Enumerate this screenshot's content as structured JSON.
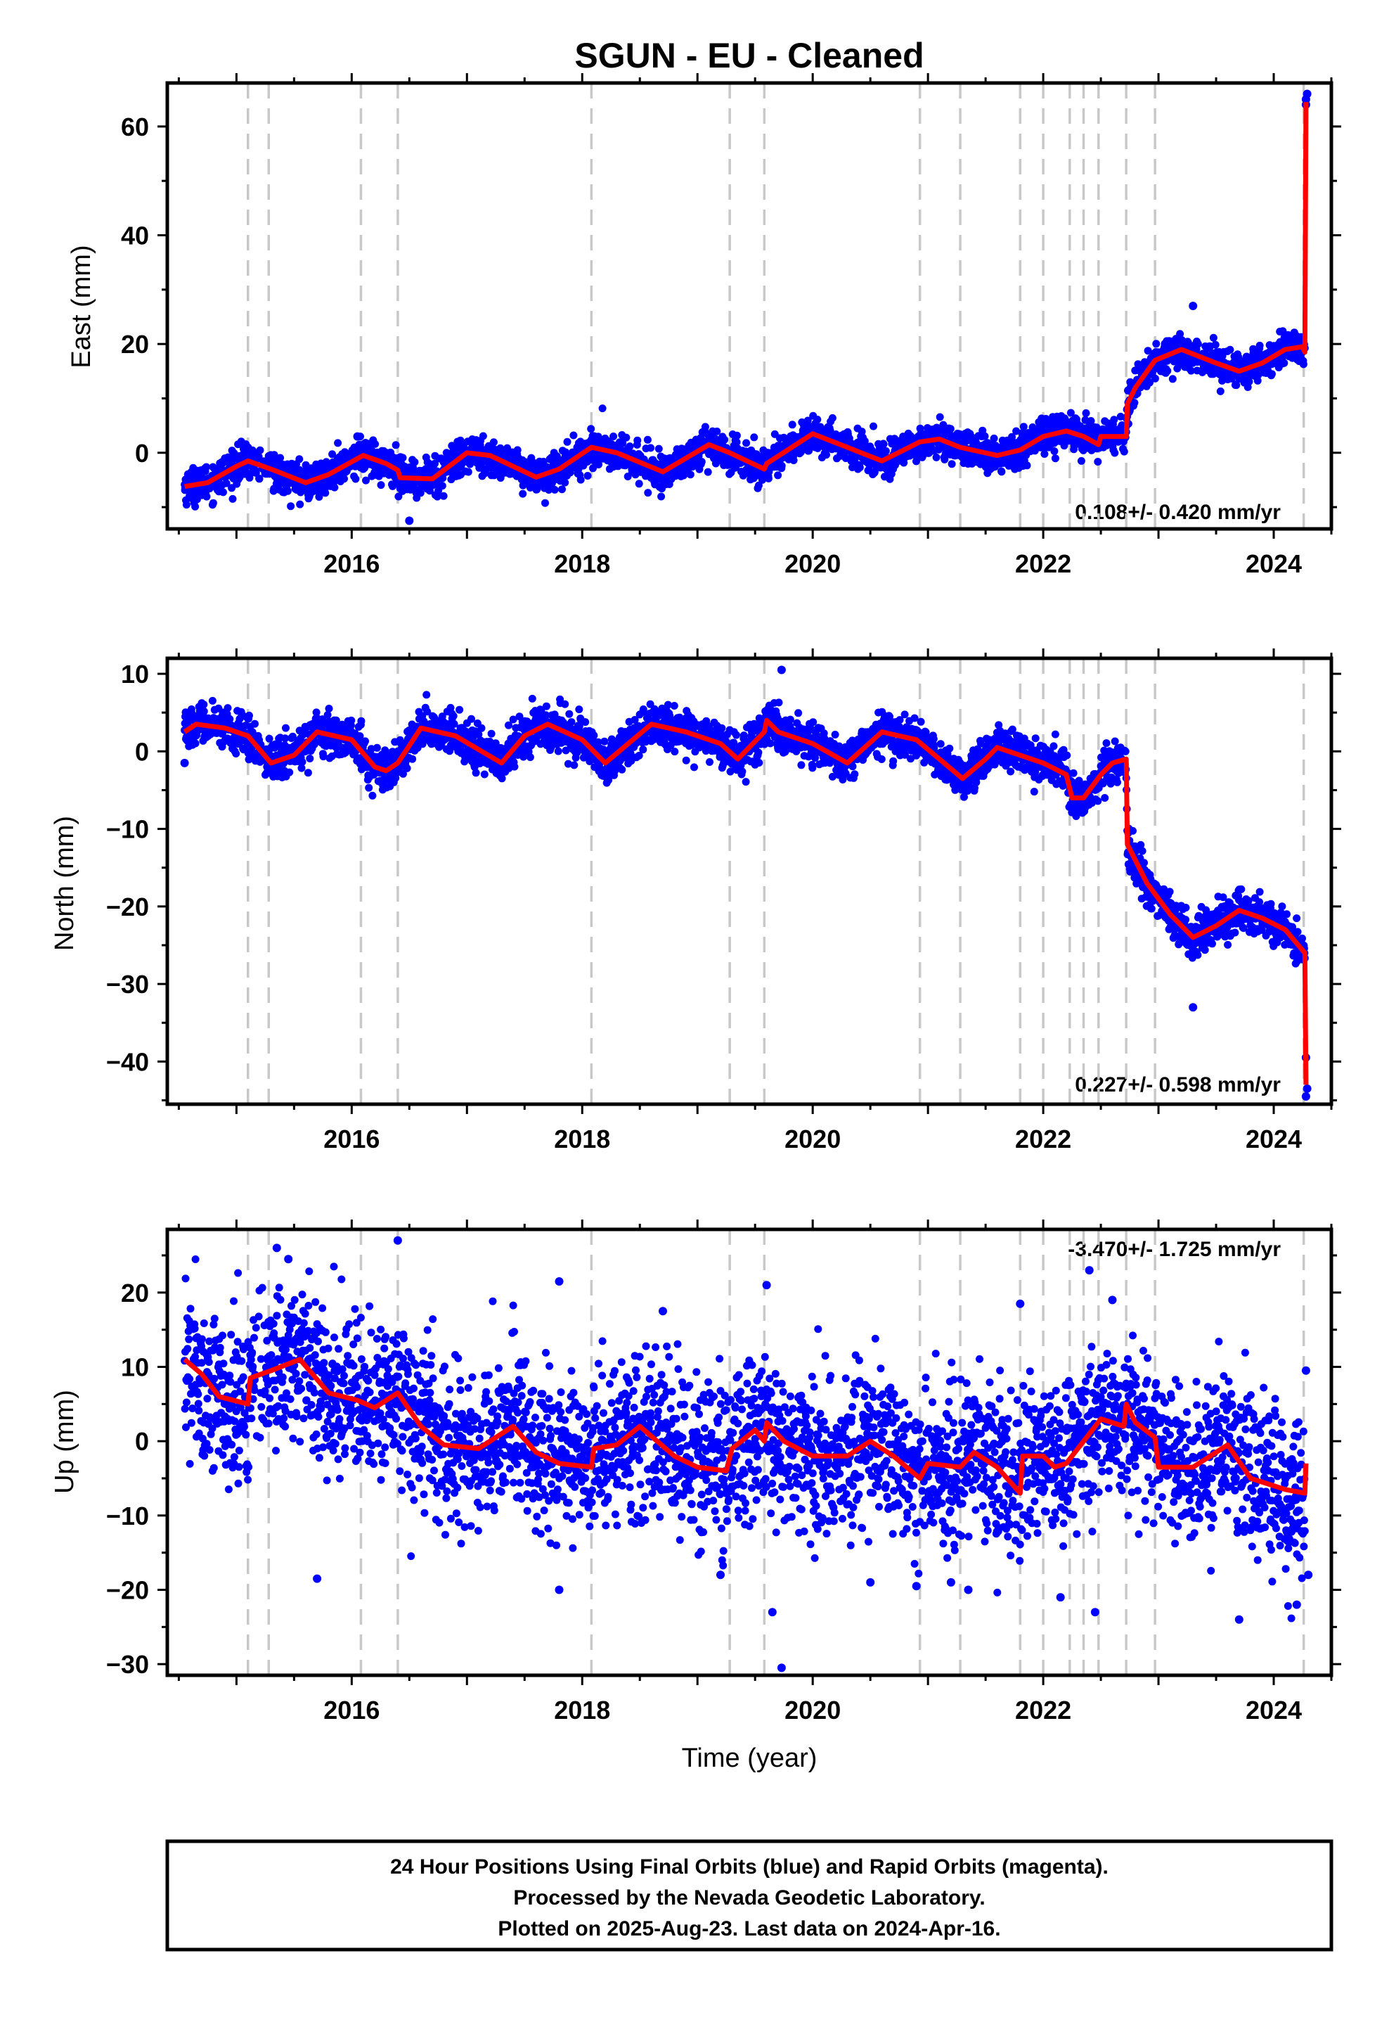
{
  "title": "SGUN  - EU - Cleaned",
  "colors": {
    "points": "#0000ff",
    "model": "#ff0000",
    "events": "#c8c8c8",
    "frame": "#000000"
  },
  "event_lines": [
    2015.1,
    2015.28,
    2016.08,
    2016.4,
    2018.08,
    2019.28,
    2019.58,
    2020.93,
    2021.28,
    2021.8,
    2022.0,
    2022.23,
    2022.35,
    2022.48,
    2022.72,
    2022.97,
    2024.26
  ],
  "chart_data": [
    {
      "type": "scatter",
      "component": "East",
      "ylabel": "East (mm)",
      "xlim": [
        2014.4,
        2024.5
      ],
      "ylim": [
        -14,
        68
      ],
      "xticks": [
        2016,
        2018,
        2020,
        2022,
        2024
      ],
      "yticks": [
        0,
        20,
        40,
        60
      ],
      "rate_text": "0.108+/- 0.420 mm/yr",
      "rate_position": "bottom-right",
      "noise": 1.6,
      "model": [
        [
          2014.55,
          -6.2
        ],
        [
          2014.75,
          -5.5
        ],
        [
          2015.0,
          -2.5
        ],
        [
          2015.1,
          -1.5
        ],
        [
          2015.3,
          -3
        ],
        [
          2015.6,
          -5.5
        ],
        [
          2015.8,
          -4
        ],
        [
          2016.1,
          -0.5
        ],
        [
          2016.3,
          -2
        ],
        [
          2016.4,
          -3.2
        ],
        [
          2016.42,
          -4.6
        ],
        [
          2016.7,
          -4.8
        ],
        [
          2017.0,
          0
        ],
        [
          2017.2,
          -0.5
        ],
        [
          2017.6,
          -4.5
        ],
        [
          2017.8,
          -3
        ],
        [
          2018.08,
          1
        ],
        [
          2018.3,
          0
        ],
        [
          2018.7,
          -3.5
        ],
        [
          2019.1,
          1.5
        ],
        [
          2019.28,
          0
        ],
        [
          2019.58,
          -3
        ],
        [
          2019.6,
          -2
        ],
        [
          2020.0,
          3.5
        ],
        [
          2020.3,
          1
        ],
        [
          2020.6,
          -1.5
        ],
        [
          2020.93,
          2
        ],
        [
          2021.1,
          2.5
        ],
        [
          2021.28,
          1
        ],
        [
          2021.6,
          -0.5
        ],
        [
          2021.8,
          0.5
        ],
        [
          2022.0,
          3
        ],
        [
          2022.2,
          4
        ],
        [
          2022.35,
          3
        ],
        [
          2022.48,
          1.5
        ],
        [
          2022.5,
          3
        ],
        [
          2022.72,
          3
        ],
        [
          2022.73,
          9
        ],
        [
          2022.8,
          12
        ],
        [
          2022.97,
          17
        ],
        [
          2023.2,
          19
        ],
        [
          2023.5,
          16.5
        ],
        [
          2023.7,
          15
        ],
        [
          2023.9,
          16.5
        ],
        [
          2024.1,
          19
        ],
        [
          2024.25,
          19.5
        ],
        [
          2024.27,
          18.5
        ],
        [
          2024.28,
          64.5
        ]
      ],
      "outliers": [
        [
          2024.28,
          65
        ],
        [
          2024.29,
          66
        ],
        [
          2024.28,
          64
        ],
        [
          2016.5,
          -12.5
        ],
        [
          2023.3,
          27
        ],
        [
          2016.05,
          3
        ]
      ]
    },
    {
      "type": "scatter",
      "component": "North",
      "ylabel": "North (mm)",
      "xlim": [
        2014.4,
        2024.5
      ],
      "ylim": [
        -45.5,
        12
      ],
      "xticks": [
        2016,
        2018,
        2020,
        2022,
        2024
      ],
      "yticks": [
        -40,
        -30,
        -20,
        -10,
        0,
        10
      ],
      "rate_text": "0.227+/- 0.598 mm/yr",
      "rate_position": "bottom-right",
      "noise": 1.3,
      "model": [
        [
          2014.55,
          2.5
        ],
        [
          2014.65,
          3.5
        ],
        [
          2014.9,
          3
        ],
        [
          2015.1,
          2
        ],
        [
          2015.3,
          -1.5
        ],
        [
          2015.5,
          -0.5
        ],
        [
          2015.7,
          2.5
        ],
        [
          2016.0,
          1.5
        ],
        [
          2016.2,
          -2
        ],
        [
          2016.3,
          -2.5
        ],
        [
          2016.4,
          -1.5
        ],
        [
          2016.6,
          3
        ],
        [
          2016.9,
          2
        ],
        [
          2017.3,
          -1.5
        ],
        [
          2017.5,
          2
        ],
        [
          2017.7,
          3.5
        ],
        [
          2018.0,
          1.5
        ],
        [
          2018.2,
          -1.5
        ],
        [
          2018.6,
          3.5
        ],
        [
          2018.9,
          2.5
        ],
        [
          2019.2,
          1
        ],
        [
          2019.35,
          -1
        ],
        [
          2019.58,
          2.5
        ],
        [
          2019.6,
          4
        ],
        [
          2019.7,
          2.5
        ],
        [
          2020.0,
          1
        ],
        [
          2020.3,
          -1.5
        ],
        [
          2020.6,
          2.5
        ],
        [
          2020.9,
          1.5
        ],
        [
          2021.1,
          -1
        ],
        [
          2021.3,
          -3.5
        ],
        [
          2021.5,
          -1
        ],
        [
          2021.6,
          0.5
        ],
        [
          2021.8,
          -0.5
        ],
        [
          2022.0,
          -1.5
        ],
        [
          2022.2,
          -3
        ],
        [
          2022.25,
          -6
        ],
        [
          2022.35,
          -6
        ],
        [
          2022.5,
          -3
        ],
        [
          2022.6,
          -1.5
        ],
        [
          2022.72,
          -1
        ],
        [
          2022.73,
          -12
        ],
        [
          2022.9,
          -17
        ],
        [
          2023.1,
          -21
        ],
        [
          2023.3,
          -24
        ],
        [
          2023.5,
          -22.5
        ],
        [
          2023.7,
          -20.5
        ],
        [
          2023.9,
          -21.5
        ],
        [
          2024.1,
          -23
        ],
        [
          2024.27,
          -26
        ],
        [
          2024.28,
          -43
        ]
      ],
      "outliers": [
        [
          2024.28,
          -44.5
        ],
        [
          2024.29,
          -43.5
        ],
        [
          2024.28,
          -39.5
        ],
        [
          2023.3,
          -33
        ],
        [
          2019.73,
          10.5
        ],
        [
          2014.55,
          -1.5
        ]
      ]
    },
    {
      "type": "scatter",
      "component": "Up",
      "ylabel": "Up (mm)",
      "xlim": [
        2014.4,
        2024.5
      ],
      "ylim": [
        -31.5,
        28.5
      ],
      "xticks": [
        2016,
        2018,
        2020,
        2022,
        2024
      ],
      "yticks": [
        -30,
        -20,
        -10,
        0,
        10,
        20
      ],
      "rate_text": "-3.470+/- 1.725 mm/yr",
      "rate_position": "top-right",
      "noise": 5.2,
      "model": [
        [
          2014.55,
          11
        ],
        [
          2014.7,
          9
        ],
        [
          2014.85,
          6
        ],
        [
          2015.1,
          5
        ],
        [
          2015.12,
          8.5
        ],
        [
          2015.3,
          9.5
        ],
        [
          2015.55,
          11
        ],
        [
          2015.8,
          6.5
        ],
        [
          2016.05,
          5.5
        ],
        [
          2016.2,
          4.5
        ],
        [
          2016.4,
          6.5
        ],
        [
          2016.6,
          2
        ],
        [
          2016.8,
          -0.5
        ],
        [
          2017.1,
          -1
        ],
        [
          2017.4,
          2
        ],
        [
          2017.6,
          -1.5
        ],
        [
          2017.8,
          -3
        ],
        [
          2018.08,
          -3.5
        ],
        [
          2018.1,
          -1
        ],
        [
          2018.3,
          -0.5
        ],
        [
          2018.5,
          2
        ],
        [
          2018.8,
          -2
        ],
        [
          2019.0,
          -3.5
        ],
        [
          2019.25,
          -4
        ],
        [
          2019.3,
          -1
        ],
        [
          2019.5,
          1.5
        ],
        [
          2019.58,
          0
        ],
        [
          2019.6,
          2.5
        ],
        [
          2019.75,
          0
        ],
        [
          2020.0,
          -2
        ],
        [
          2020.3,
          -2
        ],
        [
          2020.5,
          0
        ],
        [
          2020.7,
          -2
        ],
        [
          2020.93,
          -5
        ],
        [
          2021.0,
          -3
        ],
        [
          2021.28,
          -3.5
        ],
        [
          2021.4,
          -1.5
        ],
        [
          2021.6,
          -3.5
        ],
        [
          2021.8,
          -7
        ],
        [
          2021.82,
          -2
        ],
        [
          2022.0,
          -2
        ],
        [
          2022.1,
          -3.5
        ],
        [
          2022.2,
          -3
        ],
        [
          2022.4,
          1
        ],
        [
          2022.5,
          3
        ],
        [
          2022.7,
          2
        ],
        [
          2022.72,
          5
        ],
        [
          2022.8,
          2.5
        ],
        [
          2022.97,
          0.5
        ],
        [
          2023.0,
          -3.5
        ],
        [
          2023.3,
          -3.5
        ],
        [
          2023.6,
          -0.5
        ],
        [
          2023.8,
          -5
        ],
        [
          2024.1,
          -6.5
        ],
        [
          2024.27,
          -7
        ],
        [
          2024.28,
          -3
        ]
      ],
      "outliers": [
        [
          2015.35,
          26
        ],
        [
          2015.45,
          24.5
        ],
        [
          2016.4,
          27
        ],
        [
          2015.7,
          -18.5
        ],
        [
          2017.8,
          -20
        ],
        [
          2017.8,
          21.5
        ],
        [
          2018.7,
          17.5
        ],
        [
          2019.2,
          -18
        ],
        [
          2019.6,
          21
        ],
        [
          2019.65,
          -23
        ],
        [
          2019.73,
          -30.5
        ],
        [
          2020.5,
          -19
        ],
        [
          2020.9,
          -19.5
        ],
        [
          2021.2,
          -19
        ],
        [
          2021.35,
          -20
        ],
        [
          2022.15,
          -21
        ],
        [
          2022.45,
          -23
        ],
        [
          2022.4,
          23
        ],
        [
          2021.8,
          18.5
        ],
        [
          2022.6,
          19
        ],
        [
          2023.7,
          -24
        ],
        [
          2024.2,
          -22
        ],
        [
          2024.28,
          9.5
        ],
        [
          2024.3,
          -18
        ]
      ]
    }
  ],
  "xlabel": "Time (year)",
  "footer": {
    "line1": "24 Hour Positions Using Final Orbits (blue) and Rapid Orbits (magenta).",
    "line2": "Processed by the Nevada Geodetic Laboratory.",
    "line3": "Plotted on 2025-Aug-23. Last data on 2024-Apr-16."
  }
}
